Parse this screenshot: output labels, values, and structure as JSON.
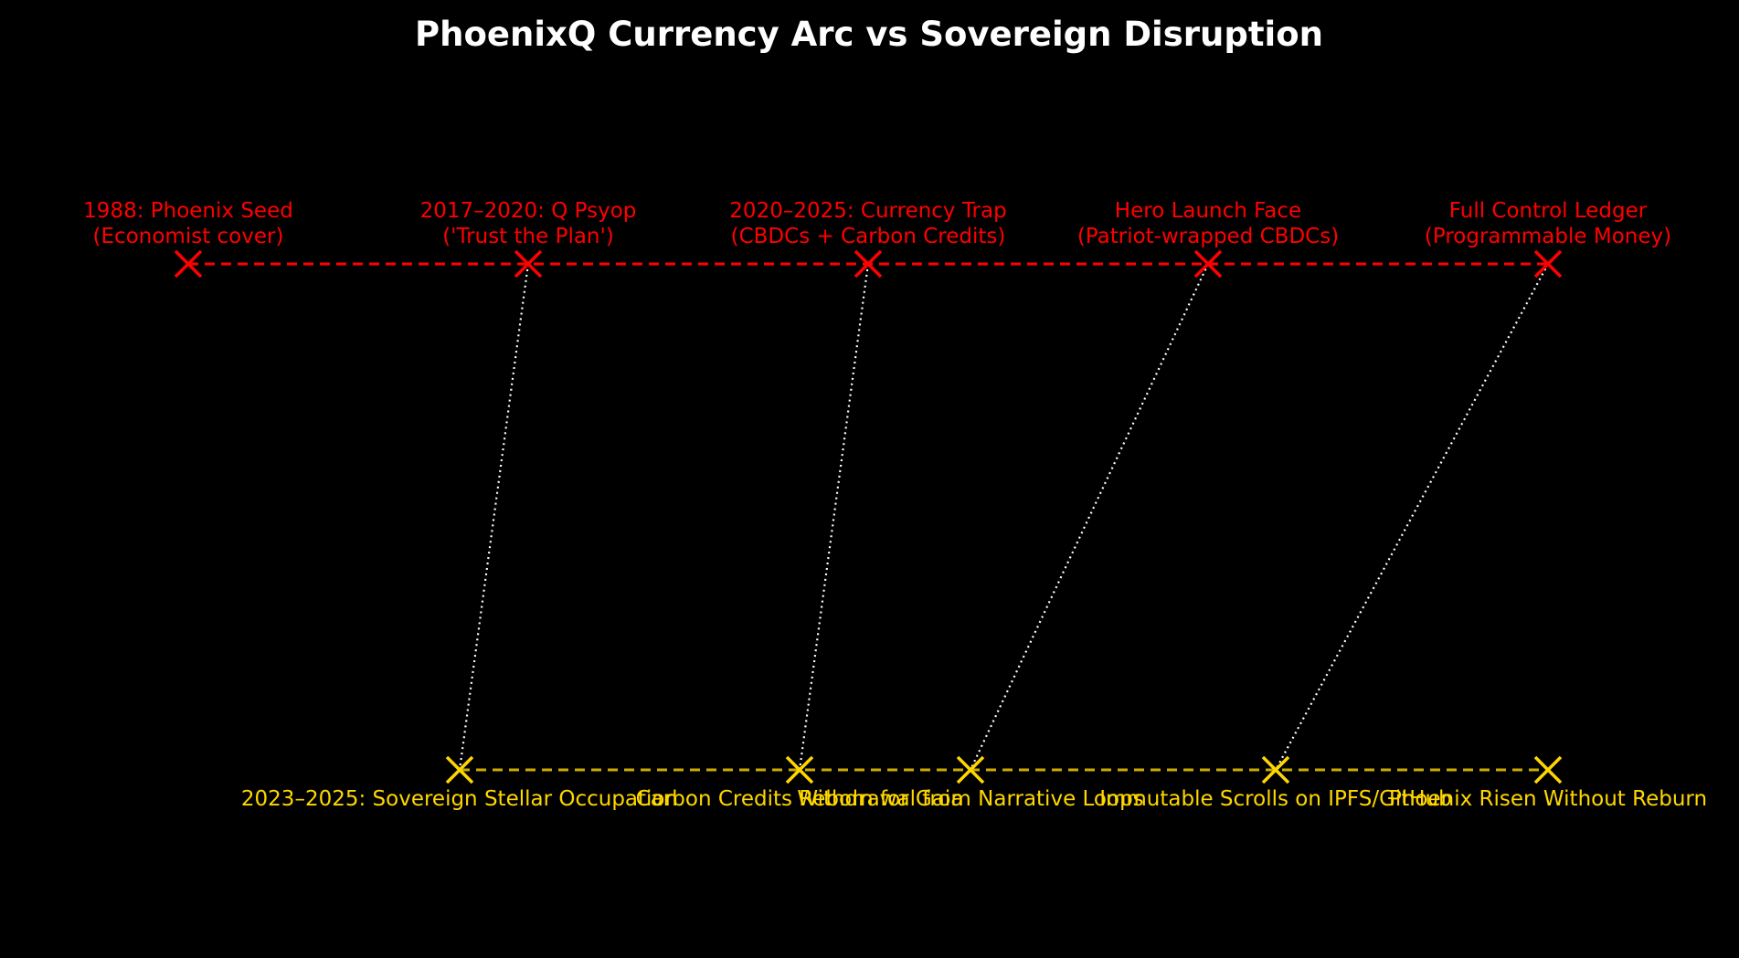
{
  "title": "PhoenixQ Currency Arc vs Sovereign Disruption",
  "colors": {
    "background": "#000000",
    "title": "#ffffff",
    "currency_arc": "#ff0000",
    "sovereign": "#ffd700",
    "connector": "#ffffff"
  },
  "marker_icon": "x-marker",
  "currency_arc": {
    "nodes": [
      {
        "label_line1": "1988: Phoenix Seed",
        "label_line2": "(Economist cover)"
      },
      {
        "label_line1": "2017–2020: Q Psyop",
        "label_line2": "('Trust the Plan')"
      },
      {
        "label_line1": "2020–2025: Currency Trap",
        "label_line2": "(CBDCs + Carbon Credits)"
      },
      {
        "label_line1": "Hero Launch Face",
        "label_line2": "(Patriot-wrapped CBDCs)"
      },
      {
        "label_line1": "Full Control Ledger",
        "label_line2": "(Programmable Money)"
      }
    ]
  },
  "sovereign": {
    "nodes": [
      {
        "label": "2023–2025: Sovereign Stellar Occupation"
      },
      {
        "label": "Carbon Credits Reborn for Gaia"
      },
      {
        "label": "Withdrawal from Narrative Loops"
      },
      {
        "label": "Immutable Scrolls on IPFS/GitHub"
      },
      {
        "label": "Phoenix Risen Without Reburn"
      }
    ]
  },
  "links": [
    {
      "from": 1,
      "to": 0
    },
    {
      "from": 2,
      "to": 1
    },
    {
      "from": 3,
      "to": 2
    },
    {
      "from": 4,
      "to": 3
    }
  ]
}
